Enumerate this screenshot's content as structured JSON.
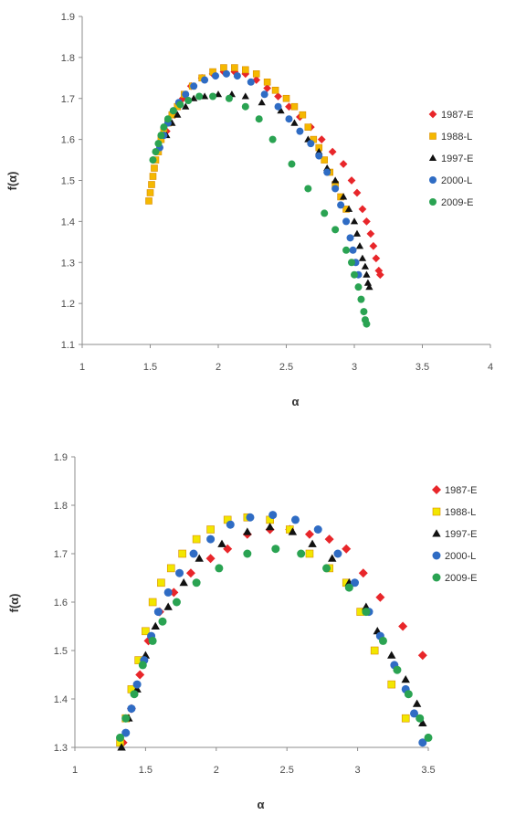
{
  "colors": {
    "1987-E": "#e8262a",
    "1988-L": "#f5b800",
    "1988-L-bottom": "#f2e600",
    "1997-E": "#111111",
    "2000-L": "#2f6cc4",
    "2009-E": "#2aa352"
  },
  "chart_data": [
    {
      "type": "scatter",
      "title": "",
      "xlabel": "α",
      "ylabel": "f(α)",
      "xlim": [
        1,
        4
      ],
      "ylim": [
        1.1,
        1.9
      ],
      "xticks": [
        "1",
        "1.5",
        "2",
        "2.5",
        "3",
        "3.5",
        "4"
      ],
      "yticks": [
        "1.1",
        "1.2",
        "1.3",
        "1.4",
        "1.5",
        "1.6",
        "1.7",
        "1.8",
        "1.9"
      ],
      "grid": false,
      "legend_position": "right",
      "series": [
        {
          "name": "1987-E",
          "marker": "diamond",
          "points": [
            [
              1.62,
              1.62
            ],
            [
              1.68,
              1.66
            ],
            [
              1.74,
              1.7
            ],
            [
              1.8,
              1.73
            ],
            [
              1.88,
              1.75
            ],
            [
              1.96,
              1.76
            ],
            [
              2.04,
              1.765
            ],
            [
              2.12,
              1.765
            ],
            [
              2.2,
              1.76
            ],
            [
              2.28,
              1.745
            ],
            [
              2.36,
              1.725
            ],
            [
              2.44,
              1.705
            ],
            [
              2.52,
              1.68
            ],
            [
              2.6,
              1.655
            ],
            [
              2.68,
              1.63
            ],
            [
              2.76,
              1.6
            ],
            [
              2.84,
              1.57
            ],
            [
              2.92,
              1.54
            ],
            [
              2.98,
              1.5
            ],
            [
              3.02,
              1.47
            ],
            [
              3.06,
              1.43
            ],
            [
              3.09,
              1.4
            ],
            [
              3.12,
              1.37
            ],
            [
              3.14,
              1.34
            ],
            [
              3.16,
              1.31
            ],
            [
              3.18,
              1.28
            ],
            [
              3.19,
              1.27
            ]
          ]
        },
        {
          "name": "1988-L",
          "marker": "square",
          "points": [
            [
              1.49,
              1.45
            ],
            [
              1.5,
              1.47
            ],
            [
              1.51,
              1.49
            ],
            [
              1.52,
              1.51
            ],
            [
              1.53,
              1.53
            ],
            [
              1.54,
              1.55
            ],
            [
              1.56,
              1.57
            ],
            [
              1.58,
              1.6
            ],
            [
              1.6,
              1.62
            ],
            [
              1.63,
              1.64
            ],
            [
              1.66,
              1.66
            ],
            [
              1.7,
              1.68
            ],
            [
              1.75,
              1.71
            ],
            [
              1.81,
              1.73
            ],
            [
              1.88,
              1.75
            ],
            [
              1.96,
              1.765
            ],
            [
              2.04,
              1.775
            ],
            [
              2.12,
              1.775
            ],
            [
              2.2,
              1.77
            ],
            [
              2.28,
              1.76
            ],
            [
              2.36,
              1.74
            ],
            [
              2.42,
              1.72
            ],
            [
              2.5,
              1.7
            ],
            [
              2.56,
              1.68
            ],
            [
              2.62,
              1.66
            ],
            [
              2.66,
              1.63
            ],
            [
              2.7,
              1.6
            ],
            [
              2.74,
              1.58
            ],
            [
              2.78,
              1.55
            ],
            [
              2.82,
              1.52
            ],
            [
              2.86,
              1.49
            ],
            [
              2.9,
              1.46
            ],
            [
              2.94,
              1.43
            ]
          ]
        },
        {
          "name": "1997-E",
          "marker": "triangle",
          "points": [
            [
              1.62,
              1.61
            ],
            [
              1.66,
              1.64
            ],
            [
              1.7,
              1.66
            ],
            [
              1.76,
              1.68
            ],
            [
              1.82,
              1.7
            ],
            [
              1.9,
              1.705
            ],
            [
              2.0,
              1.71
            ],
            [
              2.1,
              1.71
            ],
            [
              2.2,
              1.705
            ],
            [
              2.32,
              1.69
            ],
            [
              2.46,
              1.67
            ],
            [
              2.56,
              1.64
            ],
            [
              2.66,
              1.6
            ],
            [
              2.74,
              1.57
            ],
            [
              2.8,
              1.53
            ],
            [
              2.86,
              1.5
            ],
            [
              2.92,
              1.46
            ],
            [
              2.96,
              1.43
            ],
            [
              3.0,
              1.4
            ],
            [
              3.02,
              1.37
            ],
            [
              3.04,
              1.34
            ],
            [
              3.06,
              1.31
            ],
            [
              3.08,
              1.29
            ],
            [
              3.09,
              1.27
            ],
            [
              3.1,
              1.25
            ],
            [
              3.11,
              1.24
            ]
          ]
        },
        {
          "name": "2000-L",
          "marker": "circle",
          "points": [
            [
              1.57,
              1.58
            ],
            [
              1.6,
              1.61
            ],
            [
              1.63,
              1.64
            ],
            [
              1.67,
              1.67
            ],
            [
              1.71,
              1.69
            ],
            [
              1.76,
              1.71
            ],
            [
              1.82,
              1.73
            ],
            [
              1.9,
              1.745
            ],
            [
              1.98,
              1.755
            ],
            [
              2.06,
              1.76
            ],
            [
              2.14,
              1.755
            ],
            [
              2.24,
              1.74
            ],
            [
              2.34,
              1.71
            ],
            [
              2.44,
              1.68
            ],
            [
              2.52,
              1.65
            ],
            [
              2.6,
              1.62
            ],
            [
              2.68,
              1.59
            ],
            [
              2.74,
              1.56
            ],
            [
              2.8,
              1.52
            ],
            [
              2.86,
              1.48
            ],
            [
              2.9,
              1.44
            ],
            [
              2.94,
              1.4
            ],
            [
              2.97,
              1.36
            ],
            [
              2.99,
              1.33
            ],
            [
              3.01,
              1.3
            ],
            [
              3.03,
              1.27
            ]
          ]
        },
        {
          "name": "2009-E",
          "marker": "circle",
          "points": [
            [
              1.52,
              1.55
            ],
            [
              1.54,
              1.57
            ],
            [
              1.56,
              1.59
            ],
            [
              1.58,
              1.61
            ],
            [
              1.6,
              1.63
            ],
            [
              1.63,
              1.65
            ],
            [
              1.67,
              1.67
            ],
            [
              1.72,
              1.685
            ],
            [
              1.78,
              1.695
            ],
            [
              1.86,
              1.705
            ],
            [
              1.96,
              1.705
            ],
            [
              2.08,
              1.7
            ],
            [
              2.2,
              1.68
            ],
            [
              2.3,
              1.65
            ],
            [
              2.4,
              1.6
            ],
            [
              2.54,
              1.54
            ],
            [
              2.66,
              1.48
            ],
            [
              2.78,
              1.42
            ],
            [
              2.86,
              1.38
            ],
            [
              2.94,
              1.33
            ],
            [
              2.98,
              1.3
            ],
            [
              3.0,
              1.27
            ],
            [
              3.03,
              1.24
            ],
            [
              3.05,
              1.21
            ],
            [
              3.07,
              1.18
            ],
            [
              3.08,
              1.16
            ],
            [
              3.09,
              1.15
            ]
          ]
        }
      ]
    },
    {
      "type": "scatter",
      "title": "",
      "xlabel": "α",
      "ylabel": "f(α)",
      "xlim": [
        1,
        3.5
      ],
      "ylim": [
        1.3,
        1.9
      ],
      "xticks": [
        "1",
        "1.5",
        "2",
        "2.5",
        "3",
        "3.5"
      ],
      "yticks": [
        "1.3",
        "1.4",
        "1.5",
        "1.6",
        "1.7",
        "1.8",
        "1.9"
      ],
      "grid": false,
      "legend_position": "right",
      "series": [
        {
          "name": "1987-E",
          "marker": "diamond",
          "points": [
            [
              1.34,
              1.31
            ],
            [
              1.4,
              1.38
            ],
            [
              1.46,
              1.45
            ],
            [
              1.52,
              1.52
            ],
            [
              1.6,
              1.58
            ],
            [
              1.7,
              1.62
            ],
            [
              1.82,
              1.66
            ],
            [
              1.96,
              1.69
            ],
            [
              2.08,
              1.71
            ],
            [
              2.22,
              1.74
            ],
            [
              2.38,
              1.75
            ],
            [
              2.52,
              1.75
            ],
            [
              2.66,
              1.74
            ],
            [
              2.8,
              1.73
            ],
            [
              2.92,
              1.71
            ],
            [
              3.04,
              1.66
            ],
            [
              3.16,
              1.61
            ],
            [
              3.32,
              1.55
            ],
            [
              3.46,
              1.49
            ]
          ]
        },
        {
          "name": "1988-L",
          "marker": "square",
          "points": [
            [
              1.32,
              1.31
            ],
            [
              1.36,
              1.36
            ],
            [
              1.4,
              1.42
            ],
            [
              1.45,
              1.48
            ],
            [
              1.5,
              1.54
            ],
            [
              1.55,
              1.6
            ],
            [
              1.61,
              1.64
            ],
            [
              1.68,
              1.67
            ],
            [
              1.76,
              1.7
            ],
            [
              1.86,
              1.73
            ],
            [
              1.96,
              1.75
            ],
            [
              2.08,
              1.77
            ],
            [
              2.22,
              1.775
            ],
            [
              2.38,
              1.77
            ],
            [
              2.52,
              1.75
            ],
            [
              2.66,
              1.7
            ],
            [
              2.8,
              1.67
            ],
            [
              2.92,
              1.64
            ],
            [
              3.02,
              1.58
            ],
            [
              3.12,
              1.5
            ],
            [
              3.24,
              1.43
            ],
            [
              3.34,
              1.36
            ]
          ]
        },
        {
          "name": "1997-E",
          "marker": "triangle",
          "points": [
            [
              1.33,
              1.3
            ],
            [
              1.38,
              1.36
            ],
            [
              1.44,
              1.42
            ],
            [
              1.5,
              1.49
            ],
            [
              1.57,
              1.55
            ],
            [
              1.66,
              1.59
            ],
            [
              1.77,
              1.64
            ],
            [
              1.88,
              1.69
            ],
            [
              2.04,
              1.72
            ],
            [
              2.22,
              1.745
            ],
            [
              2.38,
              1.755
            ],
            [
              2.54,
              1.745
            ],
            [
              2.68,
              1.72
            ],
            [
              2.82,
              1.69
            ],
            [
              2.94,
              1.64
            ],
            [
              3.06,
              1.59
            ],
            [
              3.14,
              1.54
            ],
            [
              3.24,
              1.49
            ],
            [
              3.34,
              1.44
            ],
            [
              3.42,
              1.39
            ],
            [
              3.46,
              1.35
            ]
          ]
        },
        {
          "name": "2000-L",
          "marker": "circle",
          "points": [
            [
              1.36,
              1.33
            ],
            [
              1.4,
              1.38
            ],
            [
              1.44,
              1.43
            ],
            [
              1.49,
              1.48
            ],
            [
              1.54,
              1.53
            ],
            [
              1.59,
              1.58
            ],
            [
              1.66,
              1.62
            ],
            [
              1.74,
              1.66
            ],
            [
              1.84,
              1.7
            ],
            [
              1.96,
              1.73
            ],
            [
              2.1,
              1.76
            ],
            [
              2.24,
              1.775
            ],
            [
              2.4,
              1.78
            ],
            [
              2.56,
              1.77
            ],
            [
              2.72,
              1.75
            ],
            [
              2.86,
              1.7
            ],
            [
              2.98,
              1.64
            ],
            [
              3.08,
              1.58
            ],
            [
              3.16,
              1.53
            ],
            [
              3.26,
              1.47
            ],
            [
              3.34,
              1.42
            ],
            [
              3.4,
              1.37
            ],
            [
              3.46,
              1.31
            ]
          ]
        },
        {
          "name": "2009-E",
          "marker": "circle",
          "points": [
            [
              1.32,
              1.32
            ],
            [
              1.36,
              1.36
            ],
            [
              1.42,
              1.41
            ],
            [
              1.48,
              1.47
            ],
            [
              1.55,
              1.52
            ],
            [
              1.62,
              1.56
            ],
            [
              1.72,
              1.6
            ],
            [
              1.86,
              1.64
            ],
            [
              2.02,
              1.67
            ],
            [
              2.22,
              1.7
            ],
            [
              2.42,
              1.71
            ],
            [
              2.6,
              1.7
            ],
            [
              2.78,
              1.67
            ],
            [
              2.94,
              1.63
            ],
            [
              3.06,
              1.58
            ],
            [
              3.18,
              1.52
            ],
            [
              3.28,
              1.46
            ],
            [
              3.36,
              1.41
            ],
            [
              3.44,
              1.36
            ],
            [
              3.5,
              1.32
            ]
          ]
        }
      ]
    }
  ]
}
